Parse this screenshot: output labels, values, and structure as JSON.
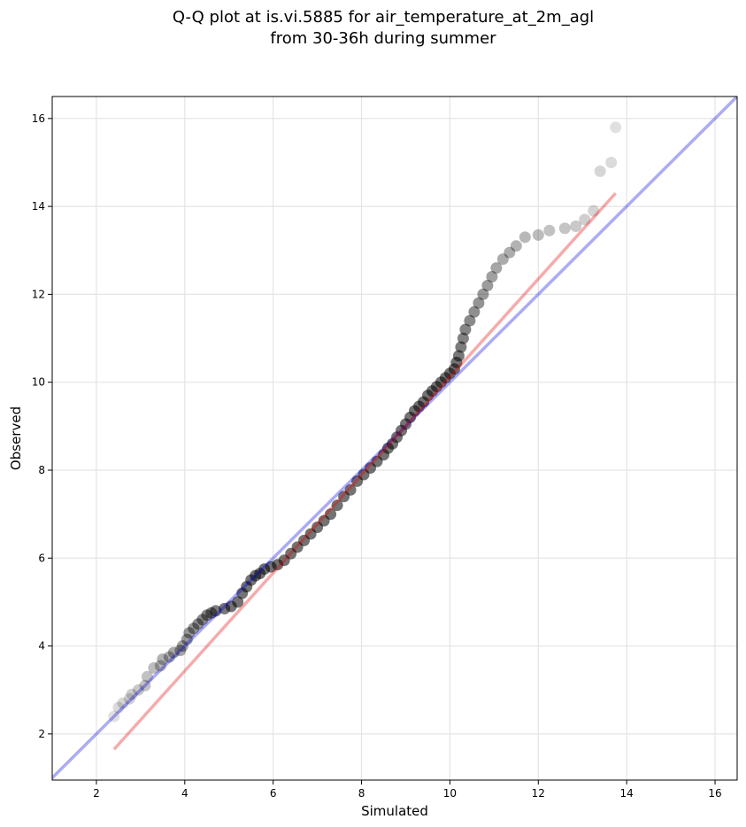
{
  "chart_data": {
    "type": "scatter",
    "title": "Q-Q plot at is.vi.5885 for air_temperature_at_2m_agl",
    "subtitle": "from 30-36h during summer",
    "xlabel": "Simulated",
    "ylabel": "Observed",
    "xlim": [
      1.0,
      16.5
    ],
    "ylim": [
      0.95,
      16.5
    ],
    "xticks": [
      2,
      4,
      6,
      8,
      10,
      12,
      14,
      16
    ],
    "yticks": [
      2,
      4,
      6,
      8,
      10,
      12,
      14,
      16
    ],
    "xtick_labels": [
      "2",
      "4",
      "6",
      "8",
      "10",
      "12",
      "14",
      "16"
    ],
    "ytick_labels": [
      "2",
      "4",
      "6",
      "8",
      "10",
      "12",
      "14",
      "16"
    ],
    "grid": true,
    "identity_line": {
      "color": "#0000e0",
      "slope": 1,
      "intercept": 0
    },
    "fit_line": {
      "color": "#e00000",
      "x": [
        2.4,
        13.75
      ],
      "y": [
        1.65,
        14.3
      ]
    },
    "point_color": "#000000",
    "quantiles": [
      [
        2.4,
        2.4
      ],
      [
        2.5,
        2.6
      ],
      [
        2.6,
        2.7
      ],
      [
        2.75,
        2.8
      ],
      [
        2.8,
        2.9
      ],
      [
        2.95,
        3.0
      ],
      [
        3.1,
        3.1
      ],
      [
        3.15,
        3.3
      ],
      [
        3.3,
        3.5
      ],
      [
        3.45,
        3.55
      ],
      [
        3.5,
        3.7
      ],
      [
        3.65,
        3.75
      ],
      [
        3.75,
        3.85
      ],
      [
        3.9,
        3.9
      ],
      [
        3.95,
        4.0
      ],
      [
        4.05,
        4.15
      ],
      [
        4.1,
        4.3
      ],
      [
        4.2,
        4.4
      ],
      [
        4.3,
        4.5
      ],
      [
        4.4,
        4.6
      ],
      [
        4.5,
        4.7
      ],
      [
        4.6,
        4.75
      ],
      [
        4.7,
        4.8
      ],
      [
        4.9,
        4.85
      ],
      [
        5.05,
        4.9
      ],
      [
        5.2,
        5.0
      ],
      [
        5.3,
        5.2
      ],
      [
        5.4,
        5.35
      ],
      [
        5.5,
        5.5
      ],
      [
        5.6,
        5.6
      ],
      [
        5.7,
        5.65
      ],
      [
        5.8,
        5.75
      ],
      [
        5.95,
        5.8
      ],
      [
        6.1,
        5.85
      ],
      [
        6.25,
        5.95
      ],
      [
        6.4,
        6.1
      ],
      [
        6.55,
        6.25
      ],
      [
        6.7,
        6.4
      ],
      [
        6.85,
        6.55
      ],
      [
        7.0,
        6.7
      ],
      [
        7.15,
        6.85
      ],
      [
        7.3,
        7.0
      ],
      [
        7.45,
        7.2
      ],
      [
        7.6,
        7.4
      ],
      [
        7.75,
        7.55
      ],
      [
        7.9,
        7.75
      ],
      [
        8.05,
        7.9
      ],
      [
        8.2,
        8.05
      ],
      [
        8.35,
        8.2
      ],
      [
        8.5,
        8.35
      ],
      [
        8.6,
        8.5
      ],
      [
        8.7,
        8.6
      ],
      [
        8.8,
        8.75
      ],
      [
        8.9,
        8.9
      ],
      [
        9.0,
        9.05
      ],
      [
        9.1,
        9.2
      ],
      [
        9.2,
        9.35
      ],
      [
        9.3,
        9.45
      ],
      [
        9.4,
        9.55
      ],
      [
        9.5,
        9.7
      ],
      [
        9.6,
        9.8
      ],
      [
        9.7,
        9.9
      ],
      [
        9.8,
        10.0
      ],
      [
        9.9,
        10.1
      ],
      [
        10.0,
        10.2
      ],
      [
        10.1,
        10.3
      ],
      [
        10.15,
        10.45
      ],
      [
        10.2,
        10.6
      ],
      [
        10.25,
        10.8
      ],
      [
        10.3,
        11.0
      ],
      [
        10.35,
        11.2
      ],
      [
        10.45,
        11.4
      ],
      [
        10.55,
        11.6
      ],
      [
        10.65,
        11.8
      ],
      [
        10.75,
        12.0
      ],
      [
        10.85,
        12.2
      ],
      [
        10.95,
        12.4
      ],
      [
        11.05,
        12.6
      ],
      [
        11.2,
        12.8
      ],
      [
        11.35,
        12.95
      ],
      [
        11.5,
        13.1
      ],
      [
        11.7,
        13.3
      ],
      [
        12.0,
        13.35
      ],
      [
        12.25,
        13.45
      ],
      [
        12.6,
        13.5
      ],
      [
        12.85,
        13.55
      ],
      [
        13.05,
        13.7
      ],
      [
        13.25,
        13.9
      ],
      [
        13.4,
        14.8
      ],
      [
        13.65,
        15.0
      ],
      [
        13.75,
        15.8
      ]
    ]
  }
}
